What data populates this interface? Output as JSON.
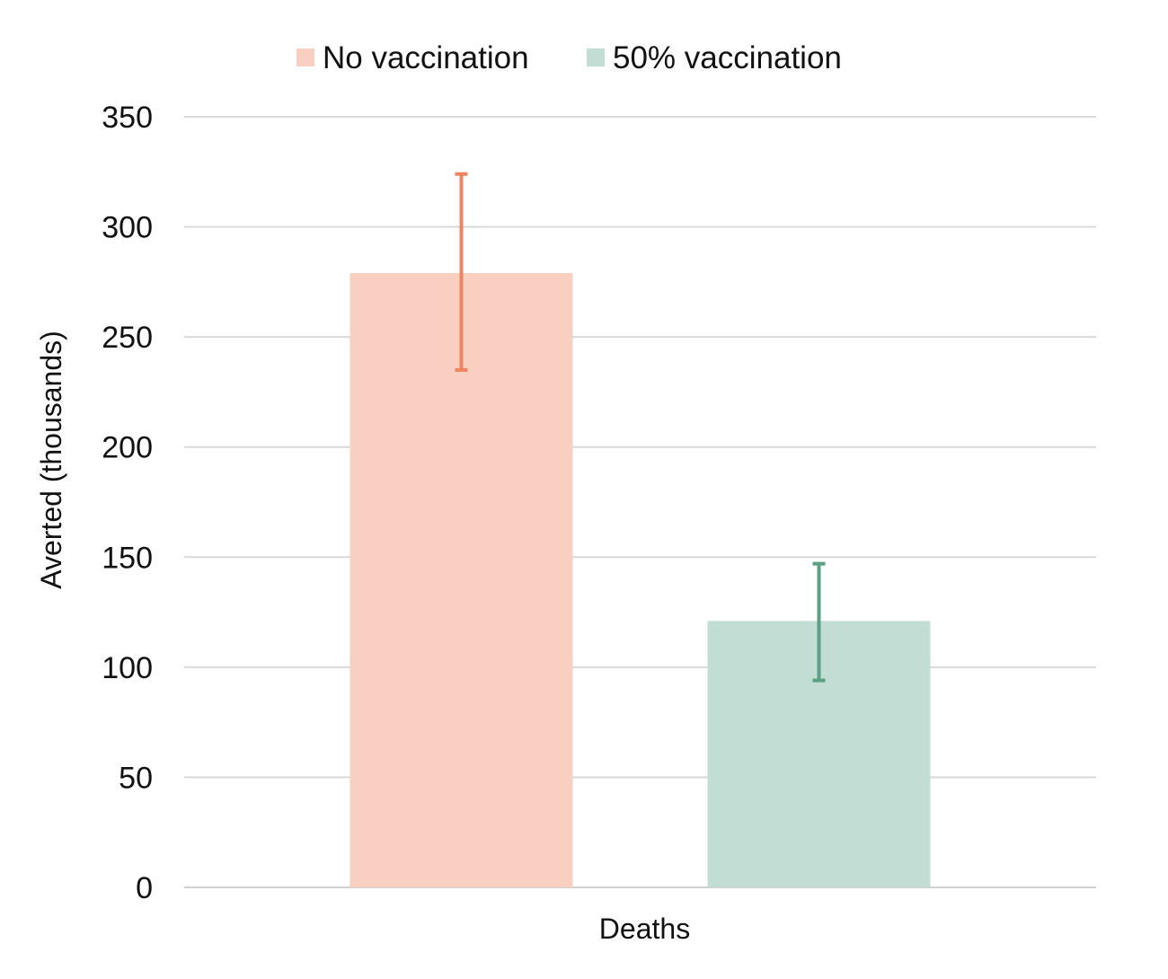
{
  "chart_data": {
    "type": "bar",
    "categories": [
      "Deaths"
    ],
    "ylabel": "Averted (thousands)",
    "ylim": [
      0,
      350
    ],
    "yticks": [
      0,
      50,
      100,
      150,
      200,
      250,
      300,
      350
    ],
    "grid": true,
    "legend_position": "top-center",
    "series": [
      {
        "name": "No vaccination",
        "values": [
          279
        ],
        "error_low": [
          235
        ],
        "error_high": [
          324
        ],
        "color": "#f8cfc0",
        "error_color": "#ec8560"
      },
      {
        "name": "50% vaccination",
        "values": [
          121
        ],
        "error_low": [
          94
        ],
        "error_high": [
          147
        ],
        "color": "#c2ddd4",
        "error_color": "#5aa085"
      }
    ]
  }
}
